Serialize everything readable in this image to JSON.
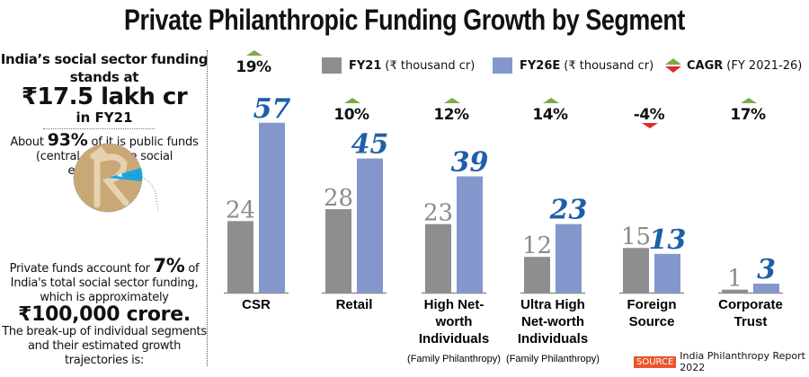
{
  "title": "Private Philanthropic Funding Growth by Segment",
  "sidebar": {
    "heading": "India’s social sector funding stands at",
    "amount": "₹17.5 lakh cr",
    "year": "in FY21",
    "public_prefix": "About",
    "public_pct": "93%",
    "public_suffix": "of it is public funds (central and state social expenditure)",
    "private_prefix": "Private funds account for",
    "private_pct": "7%",
    "private_mid": "of India's total social sector funding, which is approximately",
    "private_amount": "₹100,000 crore.",
    "private_suffix": "The break-up of individual segments and their estimated growth trajectories is:",
    "coin_icon": "rupee-coin-pie-icon",
    "pie_private_share_pct": 7
  },
  "legend": {
    "fy21_label": "FY21",
    "fy21_unit": "(₹ thousand cr)",
    "fy26_label": "FY26E",
    "fy26_unit": "(₹ thousand cr)",
    "cagr_label": "CAGR",
    "cagr_unit": "(FY 2021-26)"
  },
  "colors": {
    "fy21": "#8d8e90",
    "fy26": "#8497cc",
    "fy26_label": "#1f5fa8",
    "up": "#7aab4a",
    "down": "#e02a2a",
    "coin": "#c9a878",
    "coin_symbol": "#e6d2ae",
    "pie_slice": "#19a6e0",
    "source_tag": "#e8562b"
  },
  "chart_data": {
    "type": "bar",
    "title": "Private Philanthropic Funding Growth by Segment",
    "xlabel": "",
    "ylabel": "₹ thousand cr",
    "ylim": [
      0,
      57
    ],
    "grid": false,
    "legend_position": "top",
    "categories": [
      "CSR",
      "Retail",
      "High Net-worth Individuals",
      "Ultra High Net-worth Individuals",
      "Foreign Source",
      "Corporate Trust"
    ],
    "category_lines": [
      [
        "CSR"
      ],
      [
        "Retail"
      ],
      [
        "High Net-",
        "worth",
        "Individuals"
      ],
      [
        "Ultra High",
        "Net-worth",
        "Individuals"
      ],
      [
        "Foreign",
        "Source"
      ],
      [
        "Corporate",
        "Trust"
      ]
    ],
    "category_notes": [
      "",
      "",
      "(Family Philanthropy)",
      "(Family Philanthropy)",
      "",
      ""
    ],
    "series": [
      {
        "name": "FY21 (₹ thousand cr)",
        "values": [
          24,
          28,
          23,
          12,
          15,
          1
        ]
      },
      {
        "name": "FY26E (₹ thousand cr)",
        "values": [
          57,
          45,
          39,
          23,
          13,
          3
        ]
      }
    ],
    "cagr": {
      "name": "CAGR (FY 2021-26)",
      "values": [
        "19%",
        "10%",
        "12%",
        "14%",
        "-4%",
        "17%"
      ],
      "direction": [
        "up",
        "up",
        "up",
        "up",
        "down",
        "up"
      ]
    }
  },
  "source": {
    "tag": "SOURCE",
    "text": "India Philanthropy Report 2022"
  }
}
